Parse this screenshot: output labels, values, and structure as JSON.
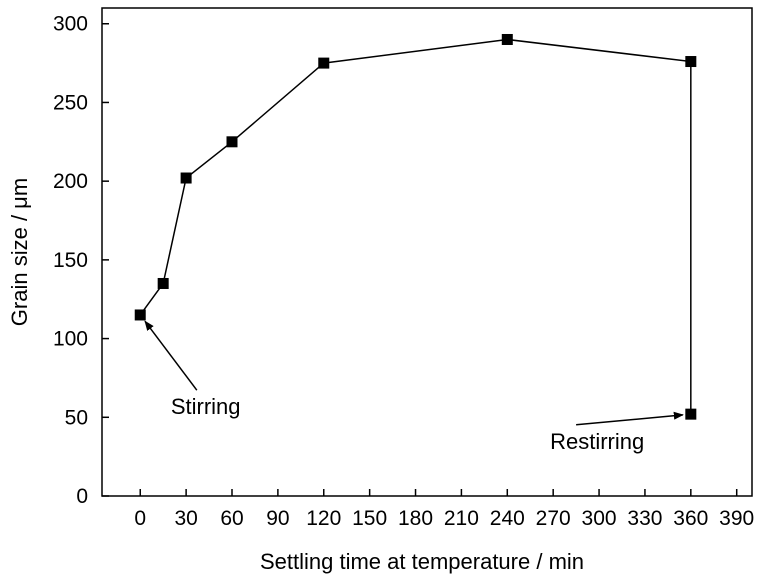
{
  "chart_data": {
    "type": "scatter",
    "title": "",
    "xlabel": "Settling time at temperature / min",
    "ylabel": "Grain size / μm",
    "xlim": [
      -25,
      400
    ],
    "ylim": [
      0,
      310
    ],
    "xticks": [
      0,
      30,
      60,
      90,
      120,
      150,
      180,
      210,
      240,
      270,
      300,
      330,
      360,
      390
    ],
    "yticks": [
      0,
      50,
      100,
      150,
      200,
      250,
      300
    ],
    "grid": false,
    "legend": "none",
    "series": [
      {
        "marker": "square",
        "color": "#000000",
        "points": [
          {
            "x": 0,
            "y": 115
          },
          {
            "x": 15,
            "y": 135
          },
          {
            "x": 30,
            "y": 202
          },
          {
            "x": 60,
            "y": 225
          },
          {
            "x": 120,
            "y": 275
          },
          {
            "x": 240,
            "y": 290
          },
          {
            "x": 360,
            "y": 276
          },
          {
            "x": 360,
            "y": 52
          }
        ]
      }
    ],
    "annotations": [
      {
        "text": "Stirring",
        "target": {
          "x": 0,
          "y": 115
        },
        "text_at": {
          "x": 20,
          "y": 52
        }
      },
      {
        "text": "Restirring",
        "target": {
          "x": 360,
          "y": 52
        },
        "text_at": {
          "x": 268,
          "y": 30
        }
      }
    ]
  }
}
